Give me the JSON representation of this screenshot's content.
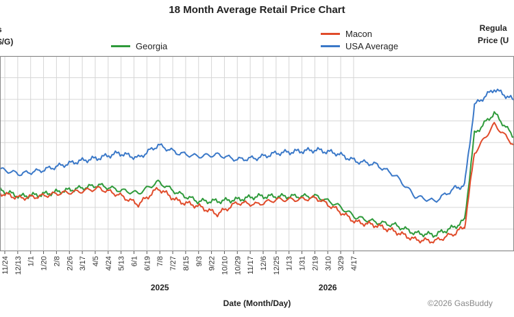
{
  "chart_data": {
    "type": "line",
    "title": "18 Month Average Retail Price Chart",
    "xlabel": "Date (Month/Day)",
    "ylabel_left": "s\n$/G)",
    "ylabel_right": "Regula\nPrice (U",
    "copyright": "©2026 GasBuddy",
    "grid": true,
    "legend": [
      "Georgia",
      "Macon",
      "USA Average"
    ],
    "ylim": [
      0,
      100
    ],
    "x_ticks": [
      "11/24",
      "12/13",
      "1/1",
      "1/20",
      "2/8",
      "2/26",
      "3/17",
      "4/5",
      "4/24",
      "5/13",
      "6/1",
      "6/19",
      "7/8",
      "7/27",
      "8/15",
      "9/3",
      "9/22",
      "10/10",
      "10/29",
      "11/17",
      "12/6",
      "12/25",
      "1/13",
      "1/31",
      "2/19",
      "3/10",
      "3/29",
      "4/17"
    ],
    "year_labels": [
      {
        "label": "2025",
        "near_tick": "7/8"
      },
      {
        "label": "2026",
        "near_tick": "3/10"
      }
    ],
    "x_index_range": [
      0,
      520
    ],
    "series": [
      {
        "name": "USA Average",
        "color": "#3a78c8",
        "points": [
          [
            0,
            50
          ],
          [
            20,
            47
          ],
          [
            40,
            49
          ],
          [
            60,
            52
          ],
          [
            80,
            55
          ],
          [
            100,
            57
          ],
          [
            120,
            60
          ],
          [
            140,
            57
          ],
          [
            160,
            65
          ],
          [
            180,
            60
          ],
          [
            200,
            58
          ],
          [
            220,
            59
          ],
          [
            240,
            56
          ],
          [
            260,
            57
          ],
          [
            280,
            60
          ],
          [
            300,
            61
          ],
          [
            320,
            62
          ],
          [
            340,
            60
          ],
          [
            360,
            55
          ],
          [
            380,
            53
          ],
          [
            400,
            46
          ],
          [
            420,
            33
          ],
          [
            440,
            30
          ],
          [
            460,
            38
          ],
          [
            470,
            40
          ],
          [
            480,
            90
          ],
          [
            500,
            100
          ],
          [
            520,
            93
          ]
        ]
      },
      {
        "name": "Georgia",
        "color": "#2e9a3a",
        "points": [
          [
            0,
            37
          ],
          [
            20,
            33
          ],
          [
            40,
            34
          ],
          [
            60,
            36
          ],
          [
            80,
            38
          ],
          [
            100,
            40
          ],
          [
            120,
            37
          ],
          [
            140,
            35
          ],
          [
            160,
            42
          ],
          [
            180,
            35
          ],
          [
            200,
            30
          ],
          [
            220,
            30
          ],
          [
            240,
            31
          ],
          [
            260,
            33
          ],
          [
            280,
            33
          ],
          [
            300,
            33
          ],
          [
            320,
            33
          ],
          [
            340,
            28
          ],
          [
            360,
            20
          ],
          [
            380,
            17
          ],
          [
            400,
            15
          ],
          [
            420,
            10
          ],
          [
            440,
            9
          ],
          [
            460,
            14
          ],
          [
            470,
            18
          ],
          [
            480,
            72
          ],
          [
            500,
            85
          ],
          [
            520,
            70
          ]
        ]
      },
      {
        "name": "Macon",
        "color": "#e04b2a",
        "points": [
          [
            0,
            35
          ],
          [
            20,
            32
          ],
          [
            40,
            33
          ],
          [
            60,
            35
          ],
          [
            80,
            36
          ],
          [
            100,
            38
          ],
          [
            120,
            34
          ],
          [
            140,
            28
          ],
          [
            160,
            38
          ],
          [
            180,
            30
          ],
          [
            200,
            27
          ],
          [
            220,
            22
          ],
          [
            240,
            29
          ],
          [
            260,
            28
          ],
          [
            280,
            31
          ],
          [
            300,
            31
          ],
          [
            320,
            32
          ],
          [
            340,
            25
          ],
          [
            360,
            17
          ],
          [
            380,
            15
          ],
          [
            400,
            11
          ],
          [
            420,
            6
          ],
          [
            440,
            5
          ],
          [
            460,
            10
          ],
          [
            470,
            14
          ],
          [
            480,
            60
          ],
          [
            500,
            78
          ],
          [
            520,
            65
          ]
        ]
      }
    ]
  }
}
